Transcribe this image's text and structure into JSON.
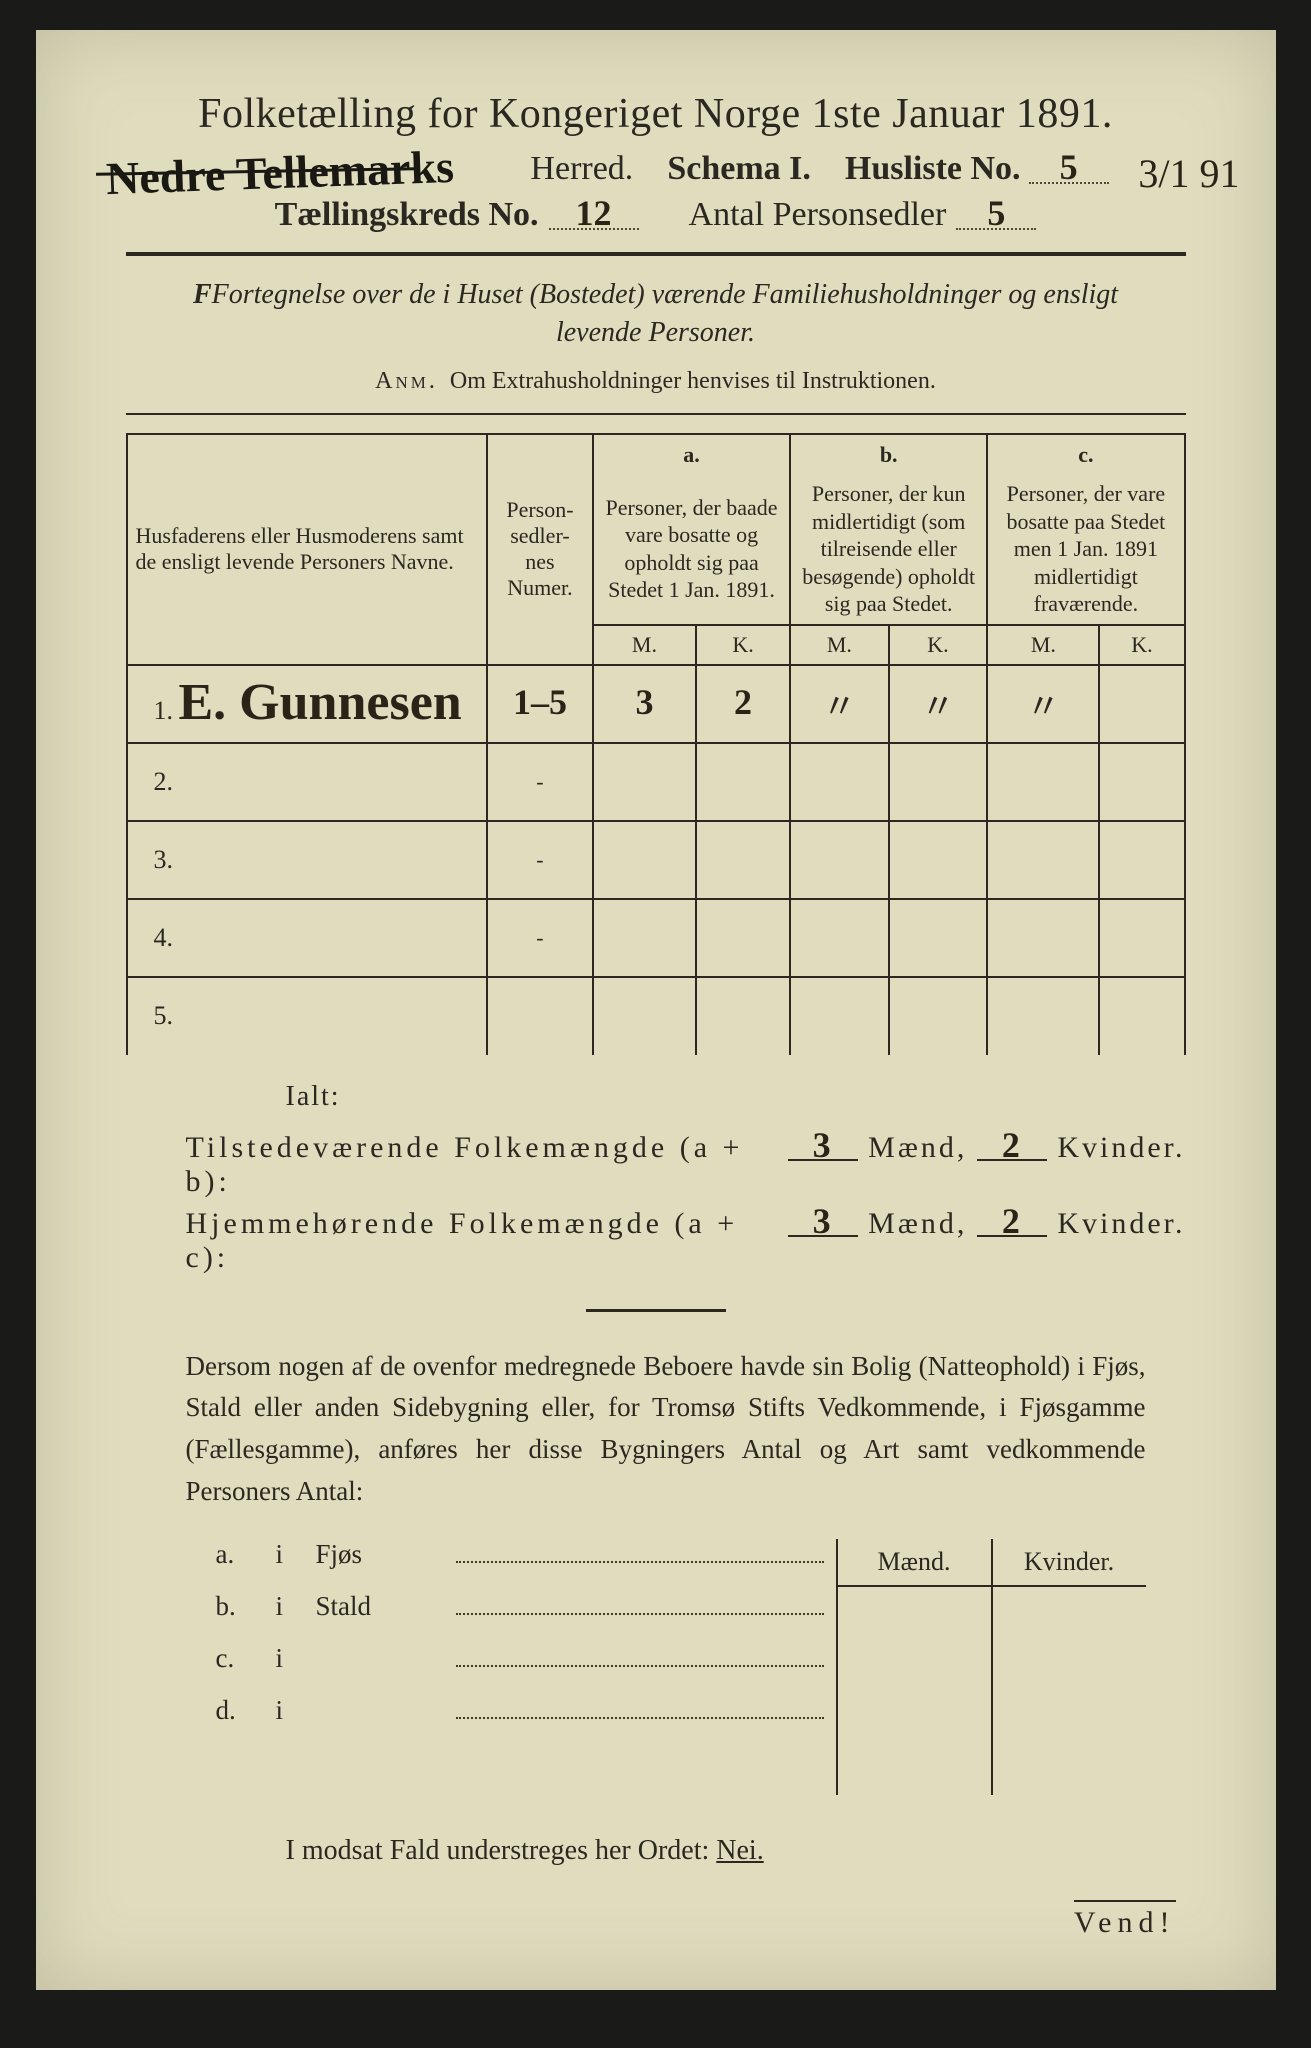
{
  "title": "Folketælling for Kongeriget Norge 1ste Januar 1891.",
  "line2": {
    "herred_printed": "Herred.",
    "herred_hand": "Nedre Tellemarks",
    "schema": "Schema I.",
    "husliste_label": "Husliste No.",
    "husliste_no": "5",
    "margin_date": "3/1 91"
  },
  "line3": {
    "kreds_label": "Tællingskreds No.",
    "kreds_no": "12",
    "antal_label": "Antal Personsedler",
    "antal_val": "5"
  },
  "desc": "Fortegnelse over de i Huset (Bostedet) værende Familiehusholdninger og ensligt levende Personer.",
  "anm_lead": "Anm.",
  "anm_text": "Om Extrahusholdninger henvises til Instruktionen.",
  "table": {
    "head_name": "Husfaderens eller Husmoderens samt de ensligt levende Personers Navne.",
    "head_num": "Person-sedler-nes Numer.",
    "head_a_top": "a.",
    "head_a": "Personer, der baade vare bosatte og opholdt sig paa Stedet 1 Jan. 1891.",
    "head_b_top": "b.",
    "head_b": "Personer, der kun midlertidigt (som tilreisende eller besøgende) opholdt sig paa Stedet.",
    "head_c_top": "c.",
    "head_c": "Personer, der vare bosatte paa Stedet men 1 Jan. 1891 midlertidigt fraværende.",
    "mk_m": "M.",
    "mk_k": "K.",
    "rows": [
      {
        "n": "1.",
        "name": "E. Gunnesen",
        "num": "1–5",
        "a_m": "3",
        "a_k": "2",
        "b_m": "〃",
        "b_k": "〃",
        "c_m": "〃",
        "c_k": ""
      },
      {
        "n": "2.",
        "name": "",
        "num": "-",
        "a_m": "",
        "a_k": "",
        "b_m": "",
        "b_k": "",
        "c_m": "",
        "c_k": ""
      },
      {
        "n": "3.",
        "name": "",
        "num": "-",
        "a_m": "",
        "a_k": "",
        "b_m": "",
        "b_k": "",
        "c_m": "",
        "c_k": ""
      },
      {
        "n": "4.",
        "name": "",
        "num": "-",
        "a_m": "",
        "a_k": "",
        "b_m": "",
        "b_k": "",
        "c_m": "",
        "c_k": ""
      },
      {
        "n": "5.",
        "name": "",
        "num": "",
        "a_m": "",
        "a_k": "",
        "b_m": "",
        "b_k": "",
        "c_m": "",
        "c_k": ""
      }
    ]
  },
  "ialt": "Ialt:",
  "tot1": {
    "label": "Tilstedeværende Folkemængde (a + b):",
    "m": "3",
    "mlbl": "Mænd,",
    "k": "2",
    "klbl": "Kvinder."
  },
  "tot2": {
    "label": "Hjemmehørende Folkemængde (a + c):",
    "m": "3",
    "mlbl": "Mænd,",
    "k": "2",
    "klbl": "Kvinder."
  },
  "para": "Dersom nogen af de ovenfor medregnede Beboere havde sin Bolig (Natteophold) i Fjøs, Stald eller anden Sidebygning eller, for Tromsø Stifts Vedkommende, i Fjøsgamme (Fællesgamme), anføres her disse Bygningers Antal og Art samt vedkommende Personers Antal:",
  "out": {
    "maend": "Mænd.",
    "kvinder": "Kvinder.",
    "rows": [
      {
        "tag": "a.",
        "i": "i",
        "word": "Fjøs"
      },
      {
        "tag": "b.",
        "i": "i",
        "word": "Stald"
      },
      {
        "tag": "c.",
        "i": "i",
        "word": ""
      },
      {
        "tag": "d.",
        "i": "i",
        "word": ""
      }
    ]
  },
  "nei_line_pre": "I modsat Fald understreges her Ordet: ",
  "nei": "Nei.",
  "vend": "Vend!",
  "colors": {
    "paper": "#e0ddbf",
    "ink": "#2a2820",
    "hand": "#2a2418",
    "bg": "#1a1a18"
  }
}
